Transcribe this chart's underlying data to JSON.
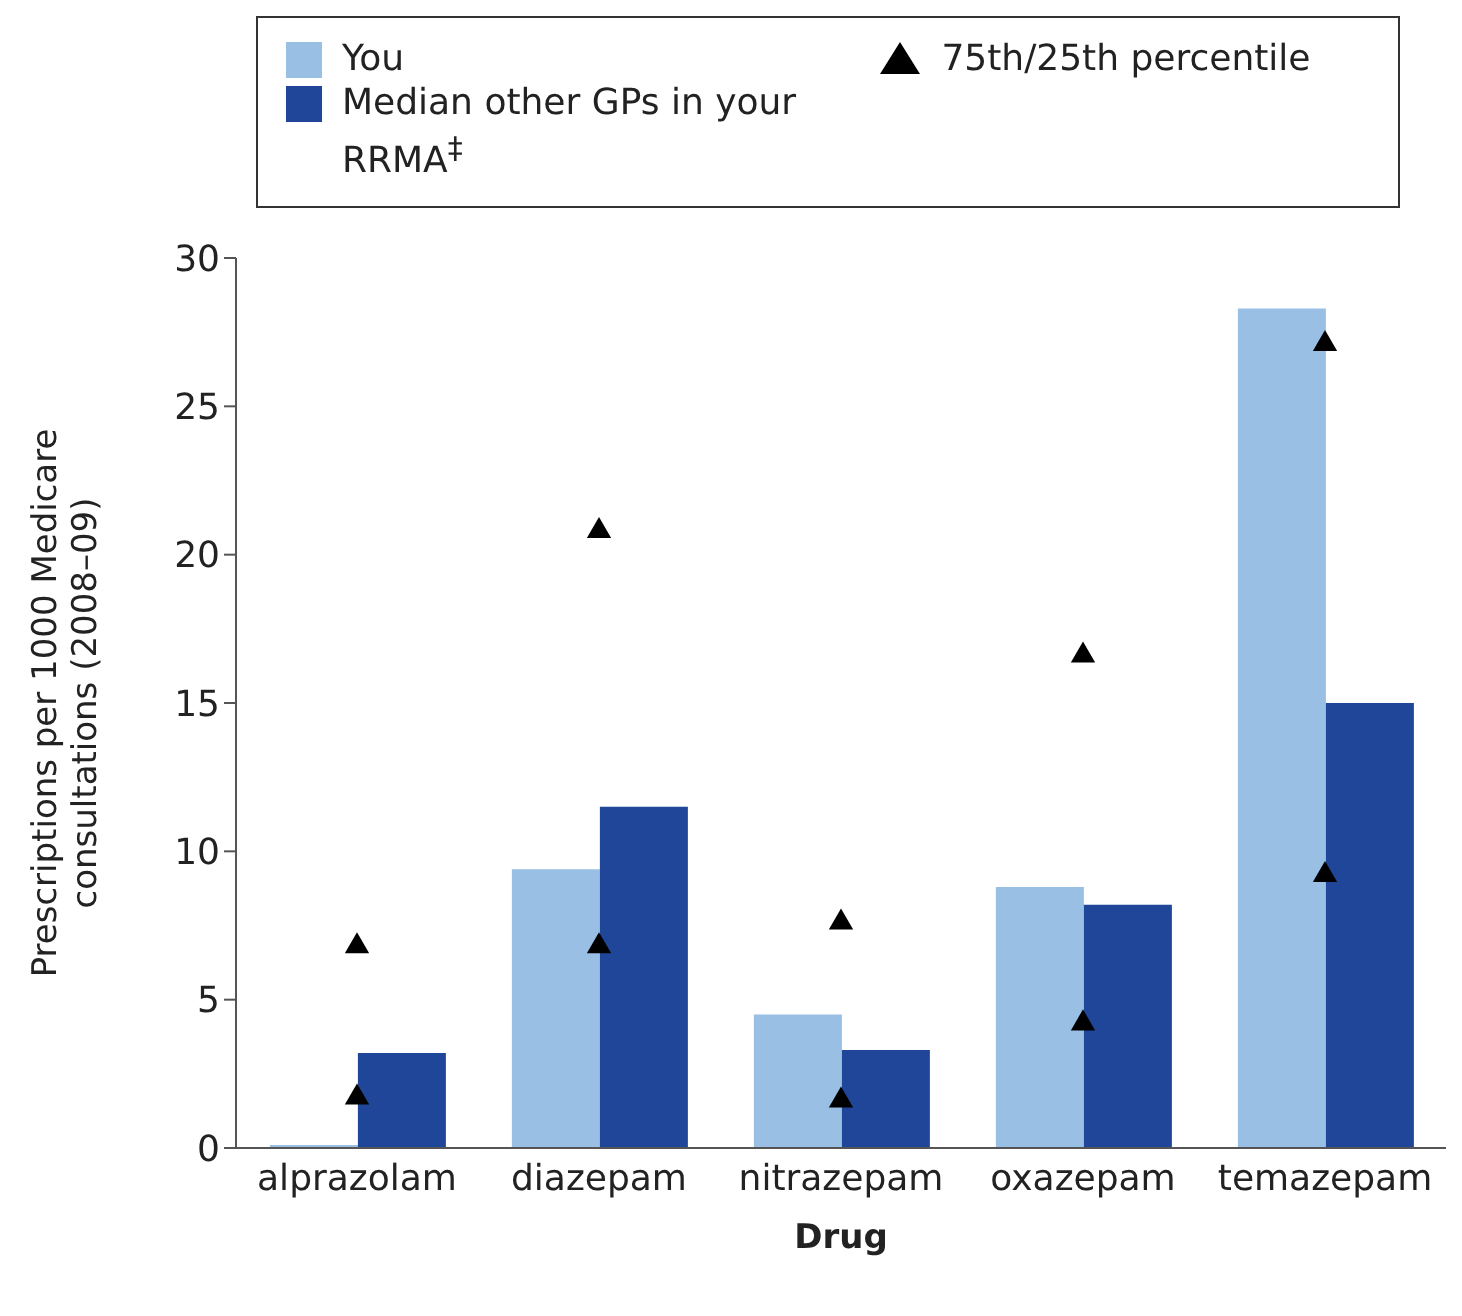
{
  "chart_data": {
    "type": "bar",
    "xlabel": "Drug",
    "ylabel": "Prescriptions per 1000 Medicare consultations (2008–09)",
    "categories": [
      "alprazolam",
      "diazepam",
      "nitrazepam",
      "oxazepam",
      "temazepam"
    ],
    "series": [
      {
        "name": "You",
        "color": "#99bfe5",
        "values": [
          0.1,
          9.4,
          4.5,
          8.8,
          28.3
        ]
      },
      {
        "name": "Median other GPs in your RRMA$^{‡}$",
        "color": "#1f4699",
        "values": [
          3.2,
          11.5,
          3.3,
          8.2,
          15.0
        ]
      },
      {
        "name": "75th/25th percentile",
        "type": "scatter",
        "color": "#000000",
        "marker": "triangle",
        "x": [
          "alprazolam",
          "alprazolam",
          "diazepam",
          "diazepam",
          "nitrazepam",
          "nitrazepam",
          "oxazepam",
          "oxazepam",
          "temazepam",
          "temazepam"
        ],
        "values": [
          6.8,
          1.7,
          20.8,
          6.8,
          7.6,
          1.6,
          16.6,
          4.2,
          27.1,
          9.2
        ]
      }
    ],
    "ylim": [
      0,
      30
    ],
    "yticks": [
      0,
      5,
      10,
      15,
      20,
      25,
      30
    ],
    "grid": false,
    "legend": "top"
  }
}
